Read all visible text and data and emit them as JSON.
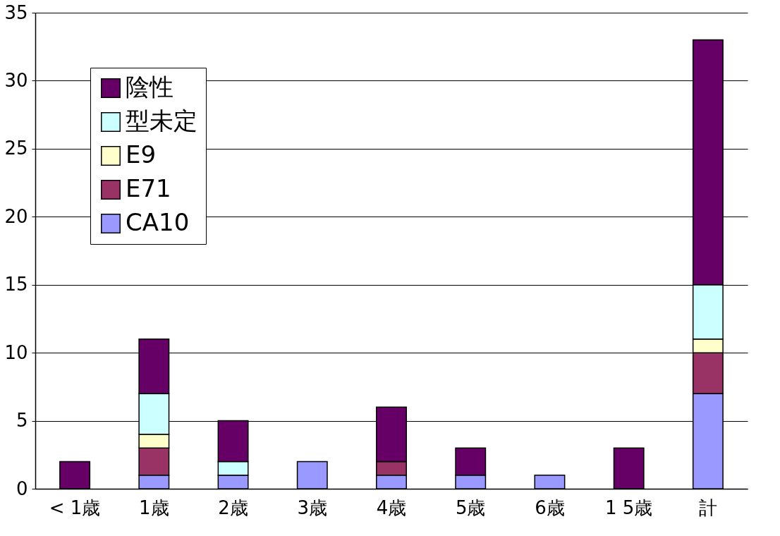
{
  "chart_data": {
    "type": "bar",
    "stacked": true,
    "categories": [
      "< 1歳",
      "1歳",
      "2歳",
      "3歳",
      "4歳",
      "5歳",
      "6歳",
      "1 5歳",
      "計"
    ],
    "series": [
      {
        "name": "CA10",
        "color": "#9999ff",
        "values": [
          0,
          1,
          1,
          2,
          1,
          1,
          1,
          0,
          7
        ]
      },
      {
        "name": "E71",
        "color": "#993366",
        "values": [
          0,
          2,
          0,
          0,
          1,
          0,
          0,
          0,
          3
        ]
      },
      {
        "name": "E9",
        "color": "#ffffcc",
        "values": [
          0,
          1,
          0,
          0,
          0,
          0,
          0,
          0,
          1
        ]
      },
      {
        "name": "型未定",
        "color": "#ccffff",
        "values": [
          0,
          3,
          1,
          0,
          0,
          0,
          0,
          0,
          4
        ]
      },
      {
        "name": "陰性",
        "color": "#660066",
        "values": [
          2,
          4,
          3,
          0,
          4,
          2,
          0,
          3,
          18
        ]
      }
    ],
    "ylim": [
      0,
      35
    ],
    "yticks": [
      0,
      5,
      10,
      15,
      20,
      25,
      30,
      35
    ],
    "grid": "y",
    "legend": "top left"
  }
}
